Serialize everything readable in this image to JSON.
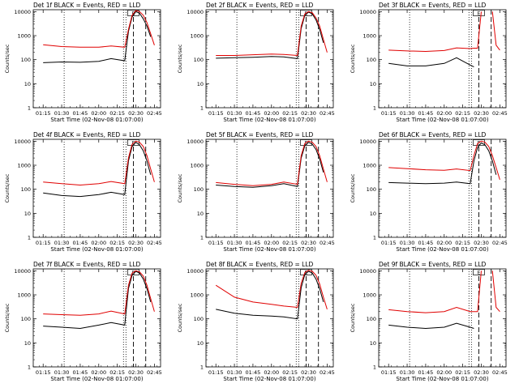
{
  "figure": {
    "ylabel": "Counts/sec",
    "xlabel": "Start Time (02-Nov-08 01:07:00)",
    "marker_label": "E",
    "x_tick_labels": [
      "01:15",
      "01:30",
      "01:45",
      "02:00",
      "02:15",
      "02:30",
      "02:45"
    ],
    "y_tick_labels": [
      "1",
      "10",
      "100",
      "1000",
      "10000"
    ],
    "colors": {
      "events": "#000000",
      "lld": "#e00000",
      "axes": "#000000"
    }
  },
  "chart_data": [
    {
      "type": "line",
      "title": "Det 1f BLACK = Events, RED = LLD",
      "xlabel": "Start Time (02-Nov-08 01:07:00)",
      "ylabel": "Counts/sec",
      "y_scale": "log",
      "xlim": [
        "01:07",
        "02:50"
      ],
      "ylim": [
        1,
        12000
      ],
      "x": [
        "01:15",
        "01:30",
        "01:45",
        "02:00",
        "02:10",
        "02:21",
        "02:24",
        "02:27",
        "02:30",
        "02:33",
        "02:36",
        "02:39",
        "02:42",
        "02:45",
        "02:48"
      ],
      "series": [
        {
          "name": "Events",
          "color": "#000000",
          "values": [
            75,
            80,
            78,
            85,
            110,
            90,
            1500,
            6000,
            10000,
            8500,
            5000,
            2500,
            900,
            null,
            null
          ]
        },
        {
          "name": "LLD",
          "color": "#e00000",
          "values": [
            420,
            350,
            330,
            330,
            370,
            330,
            1800,
            7000,
            11000,
            10000,
            7000,
            3500,
            1200,
            400,
            null
          ]
        }
      ],
      "vlines": {
        "dotted": [
          "01:32",
          "02:20",
          "02:22"
        ],
        "dashed": [
          "02:28",
          "02:38"
        ]
      }
    },
    {
      "type": "line",
      "title": "Det 2f BLACK = Events, RED = LLD",
      "xlabel": "Start Time (02-Nov-08 01:07:00)",
      "ylabel": "Counts/sec",
      "y_scale": "log",
      "xlim": [
        "01:07",
        "02:50"
      ],
      "ylim": [
        1,
        12000
      ],
      "x": [
        "01:15",
        "01:30",
        "01:45",
        "02:00",
        "02:10",
        "02:21",
        "02:24",
        "02:27",
        "02:30",
        "02:33",
        "02:36",
        "02:39",
        "02:42",
        "02:45",
        "02:48"
      ],
      "series": [
        {
          "name": "Events",
          "color": "#000000",
          "values": [
            115,
            120,
            125,
            135,
            130,
            110,
            2000,
            7000,
            9500,
            8000,
            4500,
            1800,
            500,
            null,
            null
          ]
        },
        {
          "name": "LLD",
          "color": "#e00000",
          "values": [
            150,
            150,
            160,
            170,
            165,
            150,
            2500,
            8000,
            10000,
            9000,
            5500,
            2500,
            700,
            200,
            null
          ]
        }
      ],
      "vlines": {
        "dotted": [
          "01:32",
          "02:20",
          "02:22"
        ],
        "dashed": [
          "02:28",
          "02:38"
        ]
      }
    },
    {
      "type": "line",
      "title": "Det 3f BLACK = Events, RED = LLD",
      "xlabel": "Start Time (02-Nov-08 01:07:00)",
      "ylabel": "Counts/sec",
      "y_scale": "log",
      "xlim": [
        "01:07",
        "02:50"
      ],
      "ylim": [
        1,
        12000
      ],
      "x": [
        "01:15",
        "01:30",
        "01:45",
        "02:00",
        "02:10",
        "02:21",
        "02:24",
        "02:27",
        "02:30",
        "02:33",
        "02:36",
        "02:39",
        "02:42",
        "02:45",
        "02:48"
      ],
      "series": [
        {
          "name": "Events",
          "color": "#000000",
          "values": [
            70,
            55,
            55,
            70,
            120,
            60,
            50,
            null,
            null,
            null,
            null,
            null,
            null,
            null,
            null
          ]
        },
        {
          "name": "LLD",
          "color": "#e00000",
          "values": [
            250,
            230,
            220,
            240,
            310,
            290,
            300,
            300,
            10000,
            null,
            null,
            10000,
            400,
            250,
            null
          ]
        }
      ],
      "vlines": {
        "dotted": [
          "01:32",
          "02:20",
          "02:22"
        ],
        "dashed": [
          "02:28",
          "02:38"
        ]
      }
    },
    {
      "type": "line",
      "title": "Det 4f BLACK = Events, RED = LLD",
      "xlabel": "Start Time (02-Nov-08 01:07:00)",
      "ylabel": "Counts/sec",
      "y_scale": "log",
      "xlim": [
        "01:07",
        "02:50"
      ],
      "ylim": [
        1,
        12000
      ],
      "x": [
        "01:15",
        "01:30",
        "01:45",
        "02:00",
        "02:10",
        "02:21",
        "02:24",
        "02:27",
        "02:30",
        "02:33",
        "02:36",
        "02:39",
        "02:42",
        "02:45",
        "02:48"
      ],
      "series": [
        {
          "name": "Events",
          "color": "#000000",
          "values": [
            70,
            55,
            50,
            60,
            75,
            60,
            1500,
            6000,
            9000,
            7000,
            4000,
            1500,
            400,
            null,
            null
          ]
        },
        {
          "name": "LLD",
          "color": "#e00000",
          "values": [
            200,
            170,
            150,
            170,
            210,
            170,
            2000,
            7500,
            10000,
            9000,
            6000,
            2500,
            700,
            200,
            null
          ]
        }
      ],
      "vlines": {
        "dotted": [
          "01:32",
          "02:20",
          "02:22"
        ],
        "dashed": [
          "02:28",
          "02:38"
        ]
      }
    },
    {
      "type": "line",
      "title": "Det 5f BLACK = Events, RED = LLD",
      "xlabel": "Start Time (02-Nov-08 01:07:00)",
      "ylabel": "Counts/sec",
      "y_scale": "log",
      "xlim": [
        "01:07",
        "02:50"
      ],
      "ylim": [
        1,
        12000
      ],
      "x": [
        "01:15",
        "01:30",
        "01:45",
        "02:00",
        "02:10",
        "02:21",
        "02:24",
        "02:27",
        "02:30",
        "02:33",
        "02:36",
        "02:39",
        "02:42",
        "02:45",
        "02:48"
      ],
      "series": [
        {
          "name": "Events",
          "color": "#000000",
          "values": [
            150,
            130,
            120,
            140,
            170,
            130,
            2000,
            6500,
            9000,
            7500,
            4500,
            1800,
            500,
            null,
            null
          ]
        },
        {
          "name": "LLD",
          "color": "#e00000",
          "values": [
            190,
            160,
            140,
            160,
            200,
            160,
            2500,
            8000,
            10000,
            9000,
            6000,
            2500,
            700,
            200,
            null
          ]
        }
      ],
      "vlines": {
        "dotted": [
          "01:32",
          "02:20",
          "02:22"
        ],
        "dashed": [
          "02:28",
          "02:38"
        ]
      }
    },
    {
      "type": "line",
      "title": "Det 6f BLACK = Events, RED = LLD",
      "xlabel": "Start Time (02-Nov-08 01:07:00)",
      "ylabel": "Counts/sec",
      "y_scale": "log",
      "xlim": [
        "01:07",
        "02:50"
      ],
      "ylim": [
        1,
        12000
      ],
      "x": [
        "01:15",
        "01:30",
        "01:45",
        "02:00",
        "02:10",
        "02:21",
        "02:24",
        "02:27",
        "02:30",
        "02:33",
        "02:36",
        "02:39",
        "02:42",
        "02:45",
        "02:48"
      ],
      "series": [
        {
          "name": "Events",
          "color": "#000000",
          "values": [
            190,
            180,
            170,
            180,
            200,
            170,
            1500,
            5500,
            8500,
            7000,
            4000,
            1500,
            400,
            null,
            null
          ]
        },
        {
          "name": "LLD",
          "color": "#e00000",
          "values": [
            800,
            720,
            650,
            620,
            700,
            600,
            2500,
            8000,
            10000,
            9000,
            6000,
            2500,
            800,
            250,
            null
          ]
        }
      ],
      "vlines": {
        "dotted": [
          "01:32",
          "02:20",
          "02:22"
        ],
        "dashed": [
          "02:28",
          "02:38"
        ]
      }
    },
    {
      "type": "line",
      "title": "Det 7f BLACK = Events, RED = LLD",
      "xlabel": "Start Time (02-Nov-08 01:07:00)",
      "ylabel": "Counts/sec",
      "y_scale": "log",
      "xlim": [
        "01:07",
        "02:50"
      ],
      "ylim": [
        1,
        12000
      ],
      "x": [
        "01:15",
        "01:30",
        "01:45",
        "02:00",
        "02:10",
        "02:21",
        "02:24",
        "02:27",
        "02:30",
        "02:33",
        "02:36",
        "02:39",
        "02:42",
        "02:45",
        "02:48"
      ],
      "series": [
        {
          "name": "Events",
          "color": "#000000",
          "values": [
            50,
            45,
            40,
            55,
            70,
            55,
            1800,
            6500,
            9500,
            8000,
            4500,
            1800,
            500,
            null,
            null
          ]
        },
        {
          "name": "LLD",
          "color": "#e00000",
          "values": [
            160,
            150,
            140,
            160,
            210,
            160,
            2500,
            8000,
            10000,
            9000,
            6000,
            2500,
            700,
            200,
            null
          ]
        }
      ],
      "vlines": {
        "dotted": [
          "01:32",
          "02:20",
          "02:22"
        ],
        "dashed": [
          "02:28",
          "02:38"
        ]
      }
    },
    {
      "type": "line",
      "title": "Det 8f BLACK = Events, RED = LLD",
      "xlabel": "Start Time (02-Nov-08 01:07:00)",
      "ylabel": "Counts/sec",
      "y_scale": "log",
      "xlim": [
        "01:07",
        "02:50"
      ],
      "ylim": [
        1,
        12000
      ],
      "x": [
        "01:15",
        "01:30",
        "01:45",
        "02:00",
        "02:10",
        "02:21",
        "02:24",
        "02:27",
        "02:30",
        "02:33",
        "02:36",
        "02:39",
        "02:42",
        "02:45",
        "02:48"
      ],
      "series": [
        {
          "name": "Events",
          "color": "#000000",
          "values": [
            250,
            170,
            140,
            130,
            120,
            100,
            2000,
            7000,
            9500,
            8000,
            4500,
            1800,
            500,
            null,
            null
          ]
        },
        {
          "name": "LLD",
          "color": "#e00000",
          "values": [
            2500,
            800,
            500,
            400,
            340,
            300,
            3000,
            8500,
            10500,
            9500,
            6500,
            2800,
            800,
            250,
            null
          ]
        }
      ],
      "vlines": {
        "dotted": [
          "01:32",
          "02:20",
          "02:22"
        ],
        "dashed": [
          "02:28",
          "02:38"
        ]
      }
    },
    {
      "type": "line",
      "title": "Det 9f BLACK = Events, RED = LLD",
      "xlabel": "Start Time (02-Nov-08 01:07:00)",
      "ylabel": "Counts/sec",
      "y_scale": "log",
      "xlim": [
        "01:07",
        "02:50"
      ],
      "ylim": [
        1,
        12000
      ],
      "x": [
        "01:15",
        "01:30",
        "01:45",
        "02:00",
        "02:10",
        "02:21",
        "02:24",
        "02:27",
        "02:30",
        "02:33",
        "02:36",
        "02:39",
        "02:42",
        "02:45",
        "02:48"
      ],
      "series": [
        {
          "name": "Events",
          "color": "#000000",
          "values": [
            55,
            45,
            40,
            45,
            65,
            45,
            40,
            null,
            null,
            null,
            null,
            null,
            null,
            null,
            null
          ]
        },
        {
          "name": "LLD",
          "color": "#e00000",
          "values": [
            240,
            200,
            180,
            200,
            300,
            200,
            200,
            200,
            10000,
            null,
            null,
            10000,
            300,
            200,
            null
          ]
        }
      ],
      "vlines": {
        "dotted": [
          "01:32",
          "02:20",
          "02:22"
        ],
        "dashed": [
          "02:28",
          "02:38"
        ]
      }
    }
  ]
}
